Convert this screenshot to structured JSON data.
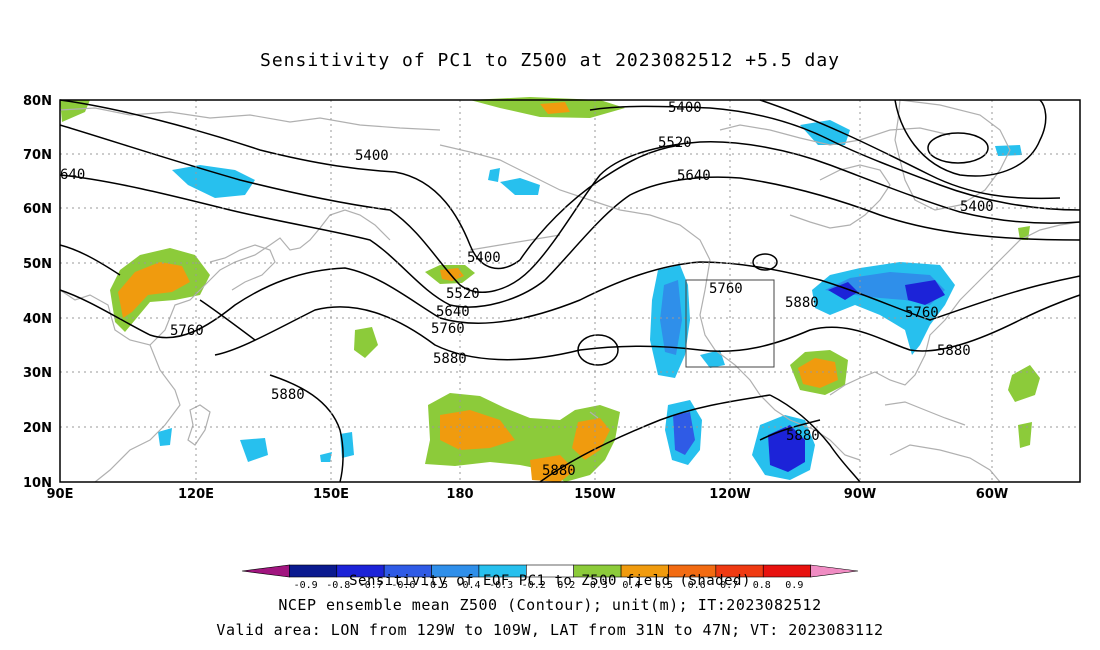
{
  "title": "Sensitivity of PC1 to Z500 at 2023082512 +5.5 day",
  "lat_labels": [
    "10N",
    "20N",
    "30N",
    "40N",
    "50N",
    "60N",
    "70N",
    "80N"
  ],
  "lon_labels": [
    "90E",
    "120E",
    "150E",
    "180",
    "150W",
    "120W",
    "90W",
    "60W"
  ],
  "contour_labels": [
    {
      "text": "5400"
    },
    {
      "text": "5400"
    },
    {
      "text": "5400"
    },
    {
      "text": "5400"
    },
    {
      "text": "5520"
    },
    {
      "text": "5520"
    },
    {
      "text": "5640"
    },
    {
      "text": "5640"
    },
    {
      "text": "640"
    },
    {
      "text": "5760"
    },
    {
      "text": "5760"
    },
    {
      "text": "5760"
    },
    {
      "text": "5760"
    },
    {
      "text": "5880"
    },
    {
      "text": "5880"
    },
    {
      "text": "5880"
    },
    {
      "text": "5880"
    },
    {
      "text": "5880"
    },
    {
      "text": "5880"
    }
  ],
  "colorbar": {
    "colors": [
      "#a1157f",
      "#0a1a8f",
      "#1c23d8",
      "#2f5be6",
      "#2f8fea",
      "#27c0ee",
      "#ffffff",
      "#8ccb3a",
      "#f09b0e",
      "#f26b12",
      "#ef3a12",
      "#e8120f",
      "#f08cc3"
    ],
    "ticks": [
      "-0.9",
      "-0.8",
      "-0.7",
      "-0.6",
      "-0.5",
      "-0.4",
      "-0.3",
      "-0.2",
      "0.2",
      "0.3",
      "0.4",
      "0.5",
      "0.6",
      "0.7",
      "0.8",
      "0.9"
    ]
  },
  "colorbar_label": "Sensitivity of EOF PC1 to Z500 field (Shaded)",
  "footer_line1": "NCEP ensemble mean Z500 (Contour); unit(m); IT:2023082512",
  "footer_line2": "Valid area: LON from 129W to 109W, LAT from 31N to 47N; VT: 2023083112",
  "shading_colors": {
    "blue_light": "#27c0ee",
    "blue_mid": "#2f8fea",
    "blue_dark": "#1c23d8",
    "green": "#8ccb3a",
    "orange": "#f09b0e"
  }
}
